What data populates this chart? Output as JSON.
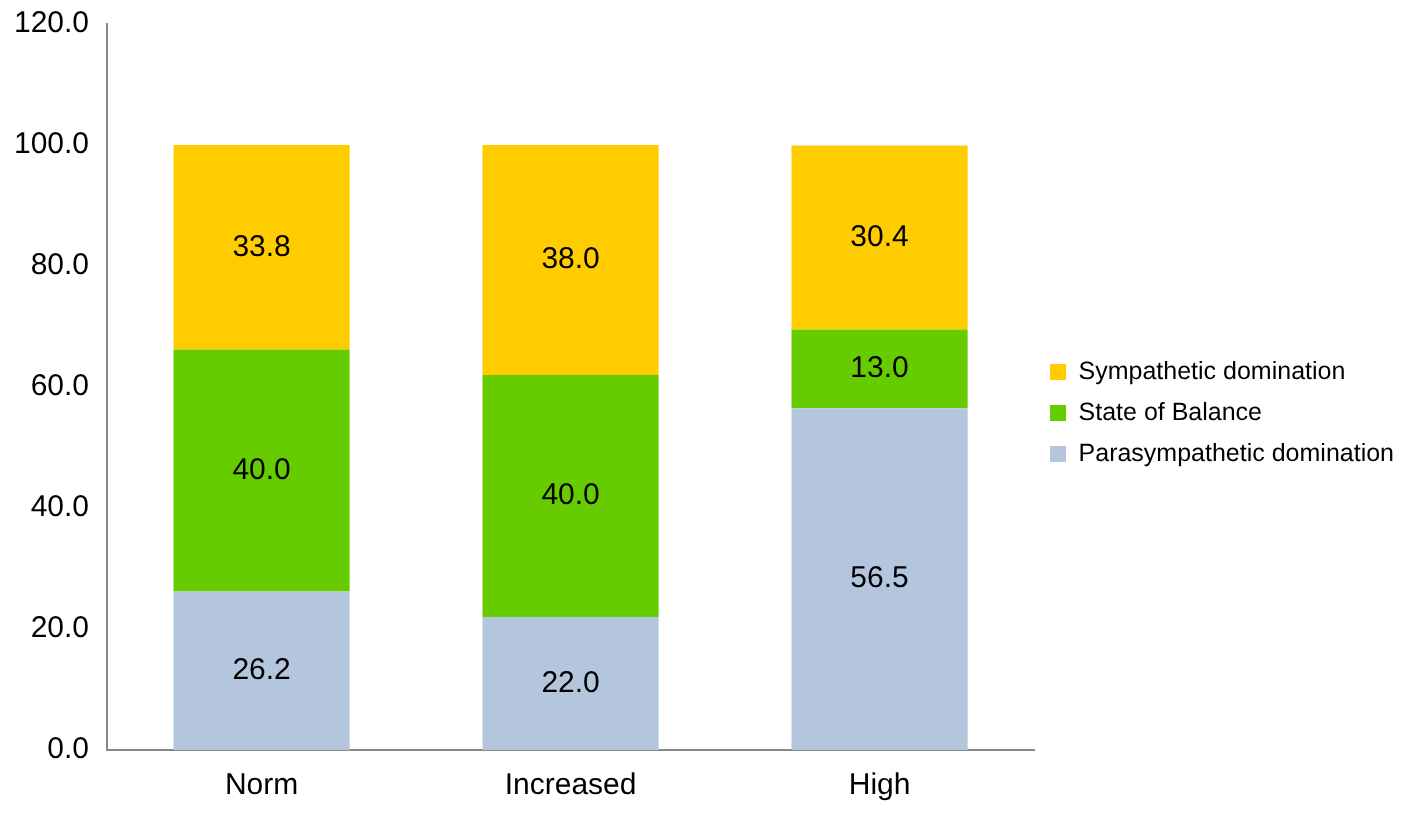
{
  "chart_data": {
    "type": "bar",
    "stacked": true,
    "categories": [
      "Norm",
      "Increased",
      "High"
    ],
    "series": [
      {
        "name": "Parasympathetic domination",
        "color": "#b3c6dd",
        "values": [
          26.2,
          22.0,
          56.5
        ],
        "value_labels": [
          "26.2",
          "22.0",
          "56.5"
        ]
      },
      {
        "name": "State of Balance",
        "color": "#66cc00",
        "values": [
          40.0,
          40.0,
          13.0
        ],
        "value_labels": [
          "40.0",
          "40.0",
          "13.0"
        ]
      },
      {
        "name": "Sympathetic domination",
        "color": "#ffcc00",
        "values": [
          33.8,
          38.0,
          30.4
        ],
        "value_labels": [
          "33.8",
          "38.0",
          "30.4"
        ]
      }
    ],
    "ylim": [
      0,
      120
    ],
    "yticks": [
      {
        "value": 0,
        "label": "0.0"
      },
      {
        "value": 20,
        "label": "20.0"
      },
      {
        "value": 40,
        "label": "40.0"
      },
      {
        "value": 60,
        "label": "60.0"
      },
      {
        "value": 80,
        "label": "80.0"
      },
      {
        "value": 100,
        "label": "100.0"
      },
      {
        "value": 120,
        "label": "120.0"
      }
    ],
    "grid": false,
    "legend": "right"
  }
}
